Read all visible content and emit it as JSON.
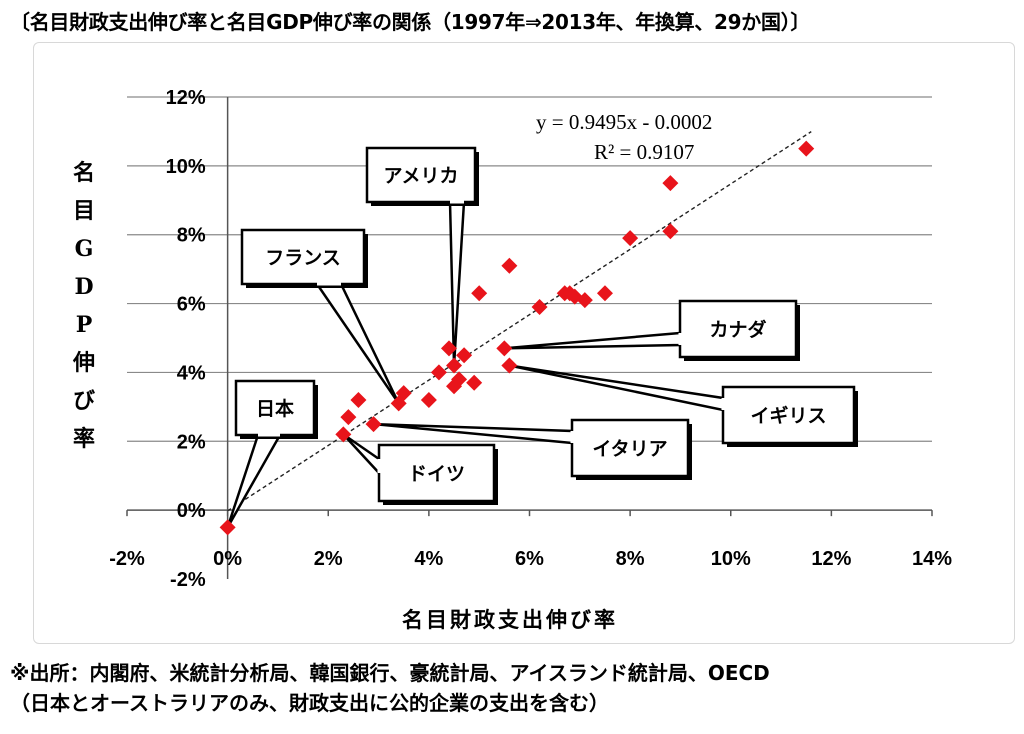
{
  "title": "〔名目財政支出伸び率と名目GDP伸び率の関係（1997年⇒2013年、年換算、29か国）〕",
  "source": {
    "line1": "※出所：内閣府、米統計分析局、韓国銀行、豪統計局、アイスランド統計局、OECD",
    "line2": "（日本とオーストラリアのみ、財政支出に公的企業の支出を含む）"
  },
  "chart_data": {
    "type": "scatter",
    "xlabel": "名目財政支出伸び率",
    "ylabel": "名目GDP伸び率",
    "xlim": [
      -0.02,
      0.14
    ],
    "ylim": [
      -0.02,
      0.12
    ],
    "x_ticks": [
      "-2%",
      "0%",
      "2%",
      "4%",
      "6%",
      "8%",
      "10%",
      "12%",
      "14%"
    ],
    "y_ticks": [
      "-2%",
      "0%",
      "2%",
      "4%",
      "6%",
      "8%",
      "10%",
      "12%"
    ],
    "grid": "horizontal",
    "marker_color": "#e8141b",
    "marker": "diamond",
    "trendline": {
      "equation": "y = 0.9495x - 0.0002",
      "r2": "R² = 0.9107",
      "slope": 0.9495,
      "intercept": -0.0002,
      "style": "dashed"
    },
    "points": [
      {
        "x": 0.0,
        "y": -0.005
      },
      {
        "x": 0.023,
        "y": 0.022
      },
      {
        "x": 0.024,
        "y": 0.027
      },
      {
        "x": 0.026,
        "y": 0.032
      },
      {
        "x": 0.029,
        "y": 0.025
      },
      {
        "x": 0.034,
        "y": 0.031
      },
      {
        "x": 0.035,
        "y": 0.034
      },
      {
        "x": 0.04,
        "y": 0.032
      },
      {
        "x": 0.042,
        "y": 0.04
      },
      {
        "x": 0.044,
        "y": 0.047
      },
      {
        "x": 0.045,
        "y": 0.036
      },
      {
        "x": 0.045,
        "y": 0.042
      },
      {
        "x": 0.046,
        "y": 0.038
      },
      {
        "x": 0.047,
        "y": 0.045
      },
      {
        "x": 0.049,
        "y": 0.037
      },
      {
        "x": 0.05,
        "y": 0.063
      },
      {
        "x": 0.055,
        "y": 0.047
      },
      {
        "x": 0.056,
        "y": 0.071
      },
      {
        "x": 0.056,
        "y": 0.042
      },
      {
        "x": 0.062,
        "y": 0.059
      },
      {
        "x": 0.067,
        "y": 0.063
      },
      {
        "x": 0.068,
        "y": 0.063
      },
      {
        "x": 0.069,
        "y": 0.062
      },
      {
        "x": 0.071,
        "y": 0.061
      },
      {
        "x": 0.075,
        "y": 0.063
      },
      {
        "x": 0.08,
        "y": 0.079
      },
      {
        "x": 0.088,
        "y": 0.081
      },
      {
        "x": 0.088,
        "y": 0.095
      },
      {
        "x": 0.115,
        "y": 0.105
      }
    ],
    "annotations": [
      {
        "label": "アメリカ",
        "point": [
          0.045,
          0.042
        ]
      },
      {
        "label": "フランス",
        "point": [
          0.034,
          0.031
        ]
      },
      {
        "label": "日本",
        "point": [
          0.0,
          -0.005
        ]
      },
      {
        "label": "ドイツ",
        "point": [
          0.023,
          0.022
        ]
      },
      {
        "label": "イタリア",
        "point": [
          0.029,
          0.025
        ]
      },
      {
        "label": "カナダ",
        "point": [
          0.055,
          0.047
        ]
      },
      {
        "label": "イギリス",
        "point": [
          0.056,
          0.042
        ]
      }
    ]
  }
}
